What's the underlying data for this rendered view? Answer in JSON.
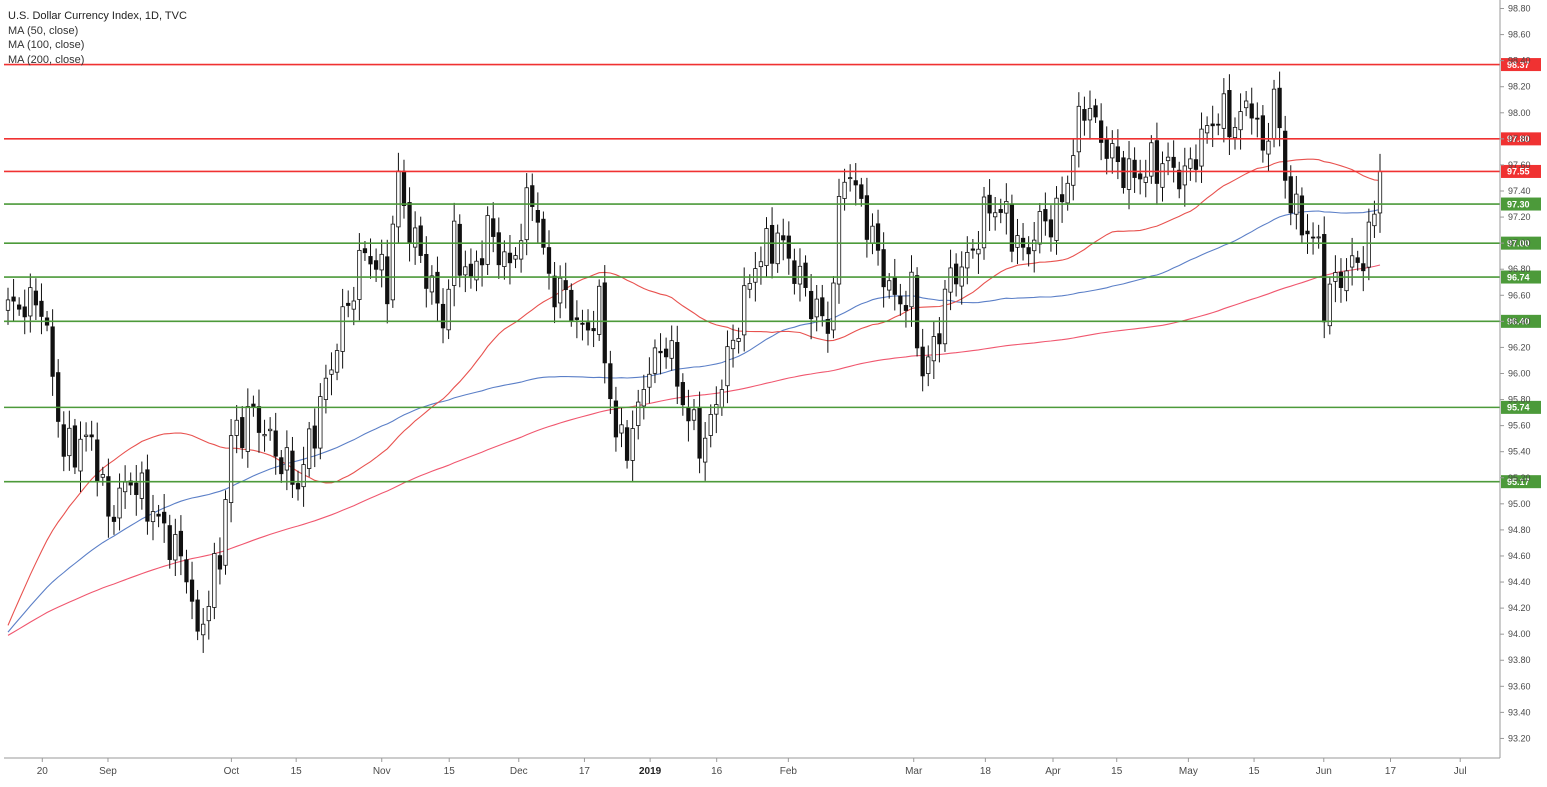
{
  "chart_data": {
    "type": "candlestick",
    "title": "U.S. Dollar Currency Index, 1D, TVC",
    "indicators": [
      {
        "name": "MA (50, close)",
        "color": "#e8524f"
      },
      {
        "name": "MA (100, close)",
        "color": "#5b7fc7"
      },
      {
        "name": "MA (200, close)",
        "color": "#f0576f"
      }
    ],
    "ylim": [
      93.05,
      98.85
    ],
    "y_ticks": [
      "98.80",
      "98.60",
      "98.40",
      "98.20",
      "98.00",
      "97.80",
      "97.60",
      "97.40",
      "97.20",
      "97.00",
      "96.80",
      "96.60",
      "96.40",
      "96.20",
      "96.00",
      "95.80",
      "95.60",
      "95.40",
      "95.20",
      "95.00",
      "94.80",
      "94.60",
      "94.40",
      "94.20",
      "94.00",
      "93.80",
      "93.60",
      "93.40",
      "93.20"
    ],
    "current_price_label": "97.55",
    "x_ticks": [
      {
        "label": "20",
        "pos": 0.0256
      },
      {
        "label": "Sep",
        "pos": 0.0695
      },
      {
        "label": "Oct",
        "pos": 0.152
      },
      {
        "label": "15",
        "pos": 0.1953
      },
      {
        "label": "Nov",
        "pos": 0.2525
      },
      {
        "label": "15",
        "pos": 0.2976
      },
      {
        "label": "Dec",
        "pos": 0.3441
      },
      {
        "label": "17",
        "pos": 0.388
      },
      {
        "label": "2019",
        "pos": 0.4319,
        "bold": true
      },
      {
        "label": "16",
        "pos": 0.4764
      },
      {
        "label": "Feb",
        "pos": 0.5243
      },
      {
        "label": "Mar",
        "pos": 0.6081
      },
      {
        "label": "18",
        "pos": 0.656
      },
      {
        "label": "Apr",
        "pos": 0.7012
      },
      {
        "label": "15",
        "pos": 0.7438
      },
      {
        "label": "May",
        "pos": 0.7917
      },
      {
        "label": "15",
        "pos": 0.8356
      },
      {
        "label": "Jun",
        "pos": 0.8822
      },
      {
        "label": "17",
        "pos": 0.9268
      },
      {
        "label": "Jul",
        "pos": 0.9734
      }
    ],
    "resistance_levels": [
      {
        "value": 98.37,
        "label": "98.37",
        "color": "#f03232"
      },
      {
        "value": 97.8,
        "label": "97.80",
        "color": "#f03232"
      },
      {
        "value": 97.55,
        "label": "97.55",
        "color": "#f03232"
      }
    ],
    "support_levels": [
      {
        "value": 97.3,
        "label": "97.30",
        "color": "#4c9a3a"
      },
      {
        "value": 97.0,
        "label": "97.00",
        "color": "#4c9a3a"
      },
      {
        "value": 96.74,
        "label": "96.74",
        "color": "#4c9a3a"
      },
      {
        "value": 96.4,
        "label": "96.40",
        "color": "#4c9a3a"
      },
      {
        "value": 95.74,
        "label": "95.74",
        "color": "#4c9a3a"
      },
      {
        "value": 95.17,
        "label": "95.17",
        "color": "#4c9a3a"
      }
    ],
    "candle_count": 247,
    "close_path": [
      [
        0,
        96.5
      ],
      [
        6,
        96.55
      ],
      [
        10,
        95.4
      ],
      [
        15,
        95.5
      ],
      [
        18,
        94.9
      ],
      [
        22,
        95.2
      ],
      [
        28,
        94.8
      ],
      [
        32,
        94.5
      ],
      [
        34,
        93.95
      ],
      [
        36,
        94.3
      ],
      [
        38,
        94.6
      ],
      [
        40,
        95.5
      ],
      [
        44,
        95.7
      ],
      [
        48,
        95.4
      ],
      [
        52,
        95.15
      ],
      [
        56,
        95.75
      ],
      [
        60,
        96.4
      ],
      [
        64,
        96.95
      ],
      [
        68,
        96.7
      ],
      [
        70,
        97.5
      ],
      [
        72,
        97.1
      ],
      [
        74,
        96.9
      ],
      [
        78,
        96.4
      ],
      [
        80,
        97.0
      ],
      [
        83,
        96.7
      ],
      [
        86,
        97.1
      ],
      [
        90,
        96.8
      ],
      [
        94,
        97.4
      ],
      [
        97,
        96.7
      ],
      [
        100,
        96.6
      ],
      [
        103,
        96.3
      ],
      [
        106,
        96.5
      ],
      [
        109,
        95.5
      ],
      [
        112,
        95.5
      ],
      [
        114,
        95.95
      ],
      [
        118,
        96.25
      ],
      [
        122,
        95.65
      ],
      [
        125,
        95.45
      ],
      [
        127,
        95.8
      ],
      [
        130,
        96.25
      ],
      [
        134,
        96.85
      ],
      [
        138,
        97.05
      ],
      [
        141,
        96.8
      ],
      [
        144,
        96.55
      ],
      [
        147,
        96.35
      ],
      [
        150,
        97.6
      ],
      [
        153,
        97.3
      ],
      [
        156,
        96.9
      ],
      [
        159,
        96.55
      ],
      [
        162,
        96.6
      ],
      [
        164,
        96.0
      ],
      [
        166,
        96.2
      ],
      [
        169,
        96.75
      ],
      [
        172,
        96.85
      ],
      [
        176,
        97.3
      ],
      [
        179,
        97.2
      ],
      [
        182,
        96.9
      ],
      [
        185,
        97.15
      ],
      [
        188,
        97.2
      ],
      [
        190,
        97.5
      ],
      [
        193,
        98.1
      ],
      [
        196,
        97.8
      ],
      [
        199,
        97.6
      ],
      [
        202,
        97.5
      ],
      [
        205,
        97.6
      ],
      [
        208,
        97.6
      ],
      [
        211,
        97.5
      ],
      [
        214,
        97.8
      ],
      [
        217,
        98.0
      ],
      [
        220,
        97.9
      ],
      [
        223,
        98.1
      ],
      [
        225,
        97.65
      ],
      [
        227,
        98.15
      ],
      [
        229,
        97.5
      ],
      [
        231,
        97.2
      ],
      [
        233,
        97.1
      ],
      [
        235,
        96.95
      ],
      [
        236,
        96.55
      ],
      [
        238,
        96.7
      ],
      [
        240,
        96.8
      ],
      [
        242,
        96.85
      ],
      [
        244,
        97.0
      ],
      [
        246,
        97.55
      ]
    ]
  }
}
